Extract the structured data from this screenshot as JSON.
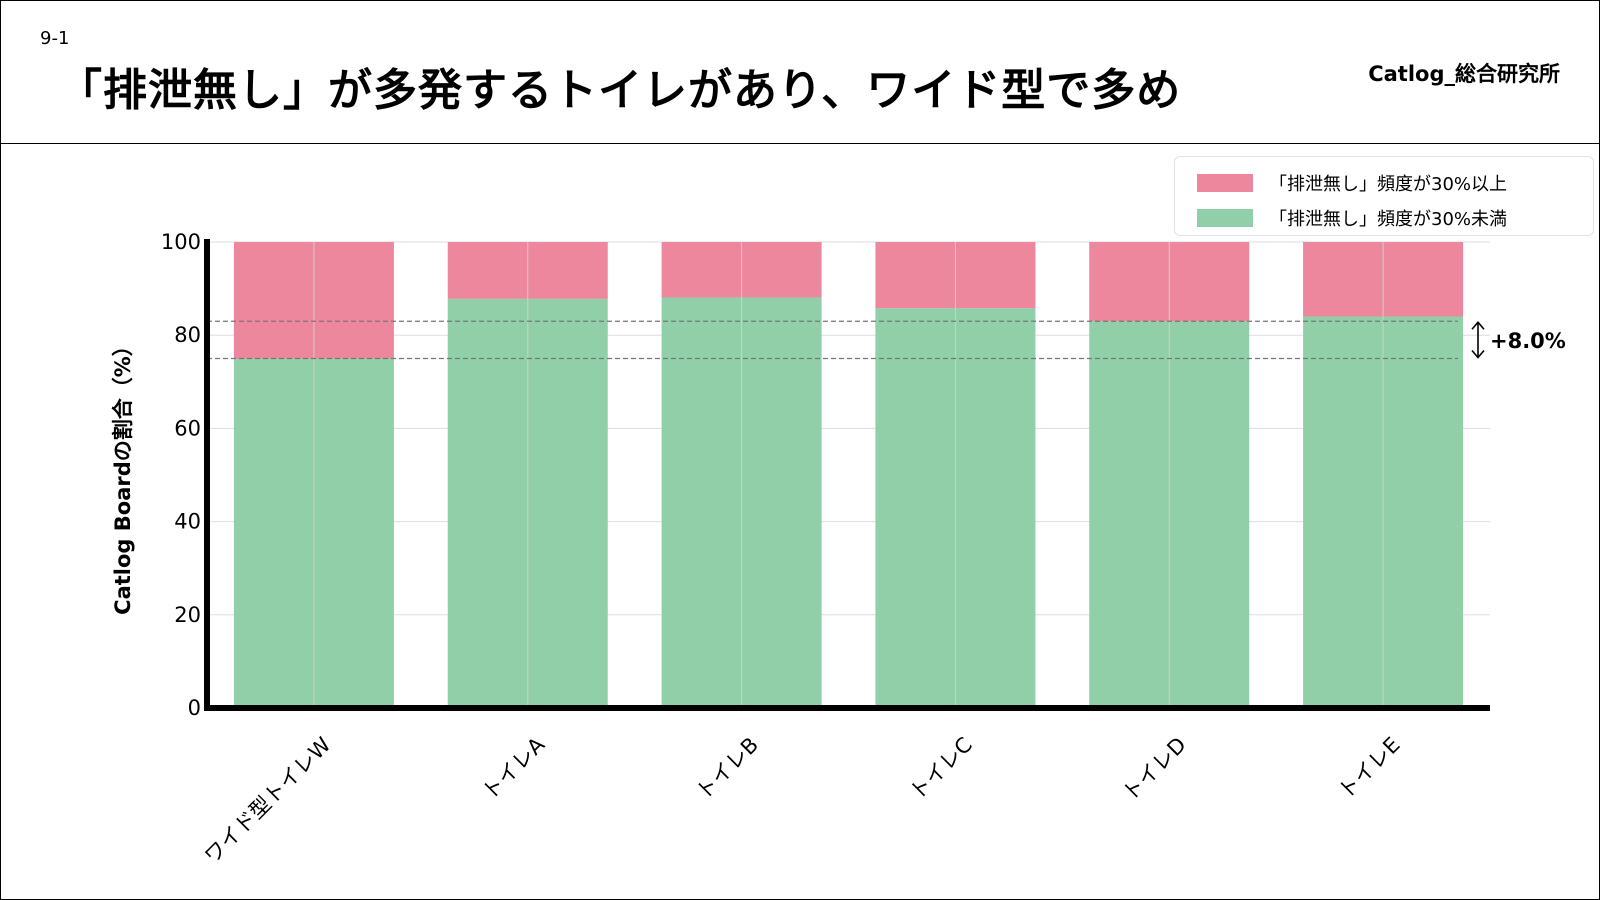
{
  "header": {
    "slide_number": "9-1",
    "title": "「排泄無し」が多発するトイレがあり、ワイド型で多め",
    "brand": "Catlog_総合研究所"
  },
  "colors": {
    "high": "#ec879e",
    "low": "#90cfa8",
    "axis": "#000000",
    "grid": "#dddddd"
  },
  "chart_data": {
    "type": "bar",
    "stacked": true,
    "categories": [
      "ワイド型トイレW",
      "トイレA",
      "トイレB",
      "トイレC",
      "トイレD",
      "トイレE"
    ],
    "series": [
      {
        "name": "「排泄無し」頻度が30%未満",
        "color": "#90cfa8",
        "values": [
          75.0,
          87.8,
          88.1,
          85.8,
          83.0,
          84.0
        ]
      },
      {
        "name": "「排泄無し」頻度が30%以上",
        "color": "#ec879e",
        "values": [
          25.0,
          12.2,
          11.9,
          14.2,
          17.0,
          16.0
        ]
      }
    ],
    "xlabel": "",
    "ylabel": "Catlog Boardの割合（%）",
    "ylim": [
      0,
      100
    ],
    "yticks": [
      0,
      20,
      40,
      60,
      80,
      100
    ],
    "grid": true,
    "legend_position": "top-right",
    "annotation": {
      "text": "+8.0%",
      "from": 75.0,
      "to": 83.0
    }
  }
}
